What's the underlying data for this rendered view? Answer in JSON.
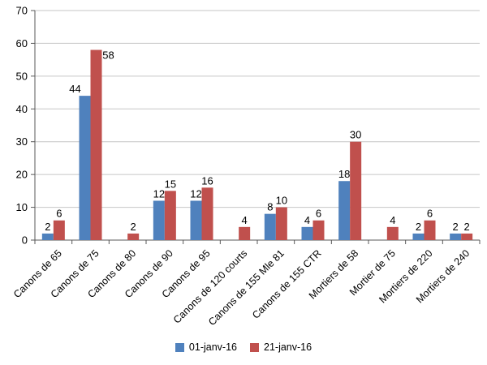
{
  "chart_data": {
    "type": "bar",
    "title": "",
    "xlabel": "",
    "ylabel": "",
    "categories": [
      "Canons de 65",
      "Canons de 75",
      "Canons de 80",
      "Canons de 90",
      "Canons de 95",
      "Canons de 120 courts",
      "Canons de 155 Mle 81",
      "Canons de 155 CTR",
      "Mortiers de 58",
      "Mortier de 75",
      "Mortiers de 220",
      "Mortiers de 240"
    ],
    "series": [
      {
        "name": "01-janv-16",
        "color": "#4F81BD",
        "values": [
          2,
          44,
          0,
          12,
          12,
          0,
          8,
          4,
          18,
          0,
          2,
          2
        ]
      },
      {
        "name": "21-janv-16",
        "color": "#C0504D",
        "values": [
          6,
          58,
          2,
          15,
          16,
          4,
          10,
          6,
          30,
          4,
          6,
          2
        ]
      }
    ],
    "ylim": [
      0,
      70
    ],
    "yticks": [
      0,
      10,
      20,
      30,
      40,
      50,
      60,
      70
    ],
    "grid": true,
    "data_labels": true,
    "zero_values_hidden": true,
    "legend_position": "bottom",
    "colors": {
      "gridline": "#C6C6C6",
      "axis": "#595959",
      "text": "#000000",
      "background": "#FFFFFF"
    }
  }
}
